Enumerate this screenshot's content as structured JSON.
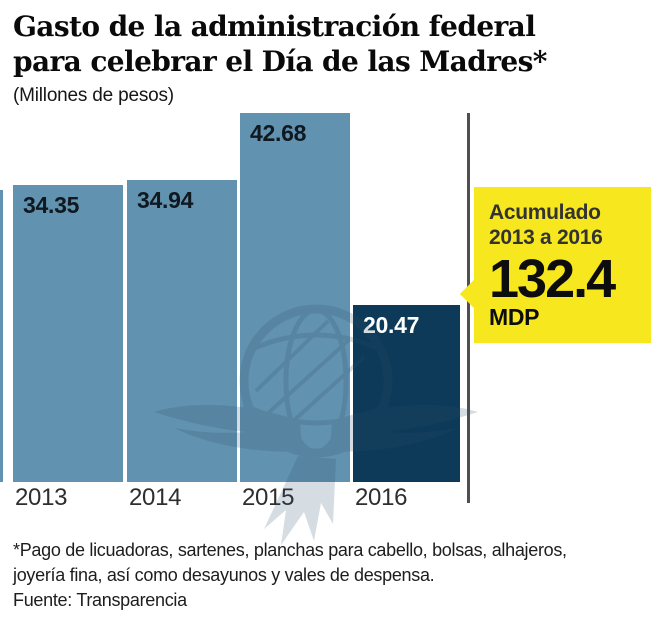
{
  "title": {
    "line1": "Gasto de la administración federal",
    "line2": "para celebrar el Día de las Madres*"
  },
  "subtitle": "(Millones de pesos)",
  "chart_data": {
    "type": "bar",
    "title": "Gasto de la administración federal para celebrar el Día de las Madres*",
    "subtitle": "(Millones de pesos)",
    "categories": [
      "2013",
      "2014",
      "2015",
      "2016"
    ],
    "values": [
      34.35,
      34.94,
      42.68,
      20.47
    ],
    "value_labels": [
      "34.35",
      "34.94",
      "42.68",
      "20.47"
    ],
    "xlabel": "",
    "ylabel": "Millones de pesos",
    "ylim": [
      0,
      45
    ],
    "grid": false,
    "legend": false,
    "bar_color": "#6192af",
    "highlight_index": 3,
    "highlight_bar_color": "#0c3a58",
    "value_label_color": "#101820",
    "highlight_value_label_color": "#ffffff",
    "annotation": {
      "label": "Acumulado 2013 a 2016",
      "value": 132.4,
      "unit": "MDP"
    }
  },
  "callout": {
    "line1": "Acumulado",
    "line2": "2013 a 2016",
    "value": "132.4",
    "unit": "MDP"
  },
  "footnote": {
    "line1": "*Pago de licuadoras, sartenes, planchas para cabello, bolsas, alhajeros,",
    "line2": "joyería fina, así como desayunos y vales de despensa.",
    "line3": "Fuente: Transparencia"
  },
  "watermark_name": "eagle-globe-watermark",
  "colors": {
    "bar": "#6192af",
    "bar_highlight": "#0c3a58",
    "callout_bg": "#f6e71e",
    "axis_line": "#4f4f4f",
    "watermark": "#2e4f6b"
  }
}
